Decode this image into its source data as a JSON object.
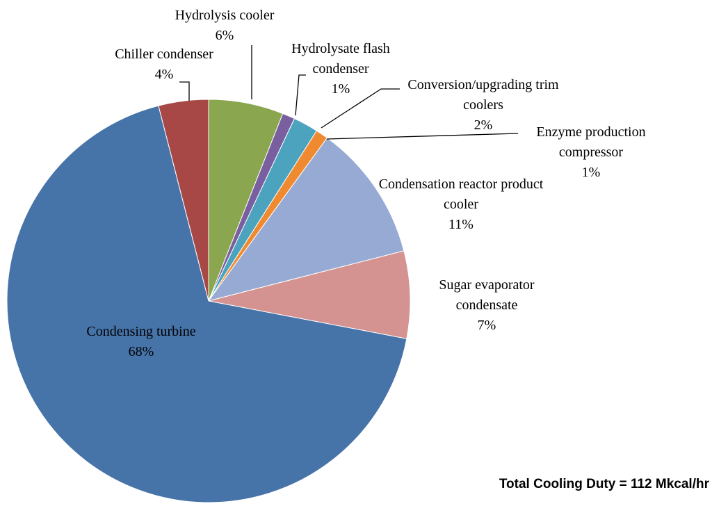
{
  "chart_data": {
    "type": "pie",
    "categories": [
      "Hydrolysis cooler",
      "Hydrolysate flash condenser",
      "Conversion/upgrading trim coolers",
      "Enzyme production compressor",
      "Condensation reactor product cooler",
      "Sugar evaporator condensate",
      "Condensing turbine",
      "Chiller condenser"
    ],
    "values": [
      6,
      1,
      2,
      1,
      11,
      7,
      68,
      4
    ],
    "value_labels": [
      "6%",
      "1%",
      "2%",
      "1%",
      "11%",
      "7%",
      "68%",
      "4%"
    ],
    "colors": [
      "#8aa64e",
      "#7a5fa0",
      "#4ba3bd",
      "#f08a30",
      "#96aad4",
      "#d49290",
      "#4673a8",
      "#a84846"
    ],
    "annotation": "Total Cooling Duty = 112 Mkcal/hr"
  }
}
